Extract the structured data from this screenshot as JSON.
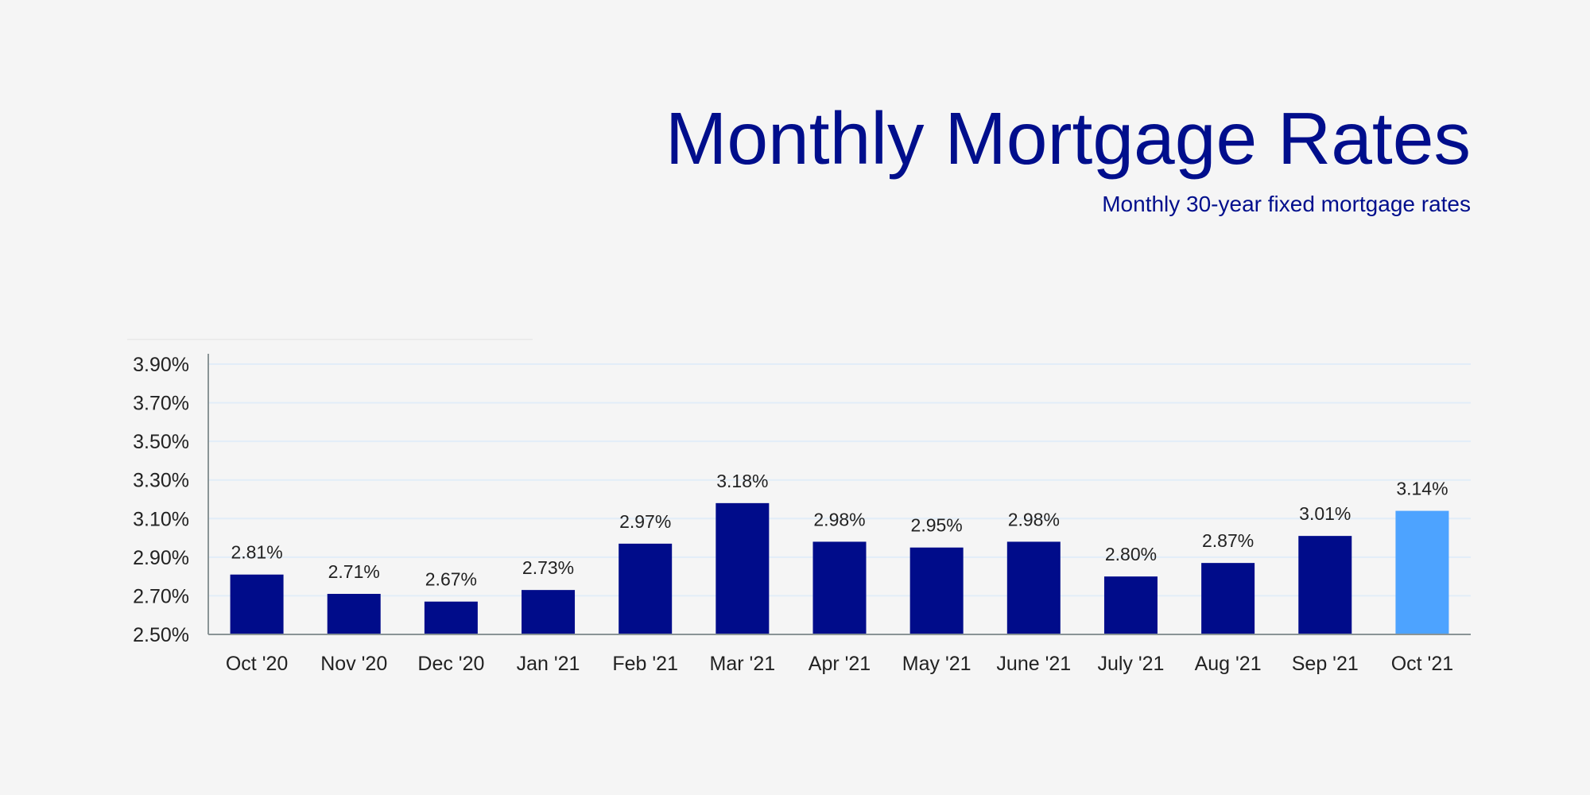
{
  "chart_data": {
    "type": "bar",
    "title": "Monthly Mortgage Rates",
    "subtitle": "Monthly 30-year fixed mortgage rates",
    "xlabel": "",
    "ylabel": "",
    "categories": [
      "Oct '20",
      "Nov '20",
      "Dec '20",
      "Jan '21",
      "Feb '21",
      "Mar '21",
      "Apr '21",
      "May '21",
      "June '21",
      "July '21",
      "Aug '21",
      "Sep '21",
      "Oct '21"
    ],
    "values": [
      2.81,
      2.71,
      2.67,
      2.73,
      2.97,
      3.18,
      2.98,
      2.95,
      2.98,
      2.8,
      2.87,
      3.01,
      3.14
    ],
    "data_labels": [
      "2.81%",
      "2.71%",
      "2.67%",
      "2.73%",
      "2.97%",
      "3.18%",
      "2.98%",
      "2.95%",
      "2.98%",
      "2.80%",
      "2.87%",
      "3.01%",
      "3.14%"
    ],
    "yticks": [
      2.5,
      2.7,
      2.9,
      3.1,
      3.3,
      3.5,
      3.7,
      3.9
    ],
    "ytick_labels": [
      "2.50%",
      "2.70%",
      "2.90%",
      "3.10%",
      "3.30%",
      "3.50%",
      "3.70%",
      "3.90%"
    ],
    "ylim": [
      2.5,
      3.95
    ],
    "grid": true,
    "legend": "none",
    "colors": {
      "bar": "#000c8a",
      "highlight": "#4da3ff",
      "title": "#000e8c",
      "grid": "#e2edf8",
      "axis": "#8a9496"
    },
    "highlight_index": 12
  }
}
